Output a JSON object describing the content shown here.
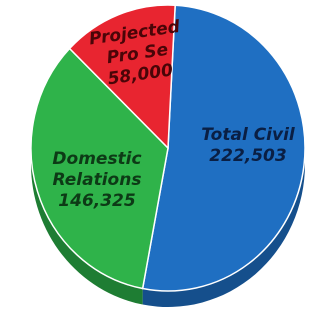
{
  "chart_data": {
    "type": "pie",
    "style": "3d",
    "slices": [
      {
        "label": "Total Civil",
        "value": "222,503",
        "amount": 222503,
        "color": "#1f6fc2",
        "side_color": "#154f8c",
        "text_color": "#0a1f44"
      },
      {
        "label": "Domestic Relations",
        "value": "146,325",
        "amount": 146325,
        "color": "#2fb34a",
        "side_color": "#1e7d33",
        "text_color": "#0d3a16"
      },
      {
        "label": "Projected Pro Se",
        "value": "58,000",
        "amount": 58000,
        "color": "#e82530",
        "side_color": "#9e1620",
        "text_color": "#4a0508"
      }
    ]
  }
}
